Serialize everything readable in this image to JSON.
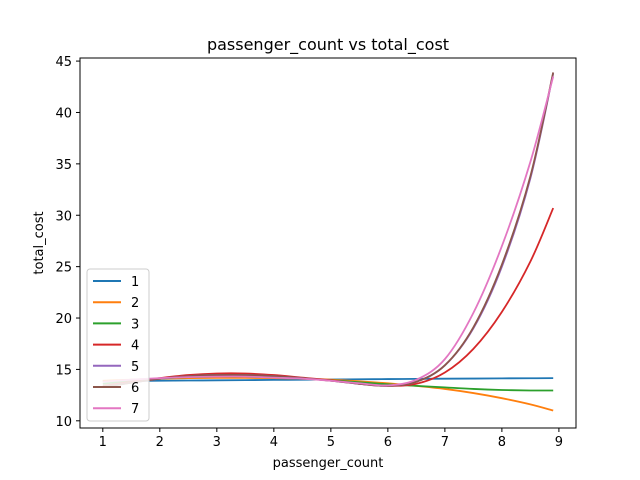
{
  "chart_data": {
    "type": "line",
    "title": "passenger_count vs total_cost",
    "xlabel": "passenger_count",
    "ylabel": "total_cost",
    "xlim": [
      0.6,
      9.3
    ],
    "ylim": [
      9.3,
      45.3
    ],
    "xticks": [
      1,
      2,
      3,
      4,
      5,
      6,
      7,
      8,
      9
    ],
    "yticks": [
      10,
      15,
      20,
      25,
      30,
      35,
      40,
      45
    ],
    "grid": false,
    "legend_position": "lower-left",
    "x": [
      1.0,
      1.5,
      2.0,
      2.5,
      3.0,
      3.5,
      4.0,
      4.5,
      5.0,
      5.5,
      6.0,
      6.5,
      7.0,
      7.5,
      8.0,
      8.5,
      8.9
    ],
    "series": [
      {
        "name": "1",
        "color": "#1f77b4",
        "values": [
          13.85,
          13.88,
          13.9,
          13.92,
          13.94,
          13.96,
          13.98,
          14.0,
          14.02,
          14.04,
          14.06,
          14.08,
          14.1,
          14.11,
          14.13,
          14.14,
          14.15
        ]
      },
      {
        "name": "2",
        "color": "#ff7f0e",
        "values": [
          13.9,
          14.0,
          14.1,
          14.15,
          14.18,
          14.18,
          14.15,
          14.1,
          14.0,
          13.85,
          13.65,
          13.4,
          13.1,
          12.7,
          12.2,
          11.6,
          11.0
        ]
      },
      {
        "name": "3",
        "color": "#2ca02c",
        "values": [
          13.6,
          13.9,
          14.1,
          14.25,
          14.3,
          14.3,
          14.22,
          14.1,
          13.95,
          13.75,
          13.55,
          13.4,
          13.25,
          13.1,
          13.0,
          12.95,
          12.95
        ]
      },
      {
        "name": "4",
        "color": "#d62728",
        "values": [
          13.4,
          13.8,
          14.15,
          14.45,
          14.6,
          14.6,
          14.45,
          14.2,
          13.95,
          13.6,
          13.4,
          13.6,
          14.7,
          17.0,
          20.6,
          25.5,
          30.7
        ]
      },
      {
        "name": "5",
        "color": "#9467bd",
        "values": [
          13.3,
          13.7,
          14.1,
          14.35,
          14.45,
          14.45,
          14.35,
          14.15,
          13.9,
          13.6,
          13.4,
          13.8,
          15.4,
          19.0,
          25.0,
          33.6,
          43.8
        ]
      },
      {
        "name": "6",
        "color": "#8c564b",
        "values": [
          13.3,
          13.7,
          14.1,
          14.35,
          14.45,
          14.45,
          14.35,
          14.15,
          13.9,
          13.6,
          13.4,
          13.8,
          15.4,
          19.1,
          25.2,
          33.8,
          43.9
        ]
      },
      {
        "name": "7",
        "color": "#e377c2",
        "values": [
          13.8,
          14.0,
          14.15,
          14.25,
          14.3,
          14.3,
          14.2,
          14.1,
          13.9,
          13.65,
          13.45,
          14.0,
          16.0,
          20.5,
          27.0,
          35.2,
          43.5
        ]
      }
    ]
  }
}
